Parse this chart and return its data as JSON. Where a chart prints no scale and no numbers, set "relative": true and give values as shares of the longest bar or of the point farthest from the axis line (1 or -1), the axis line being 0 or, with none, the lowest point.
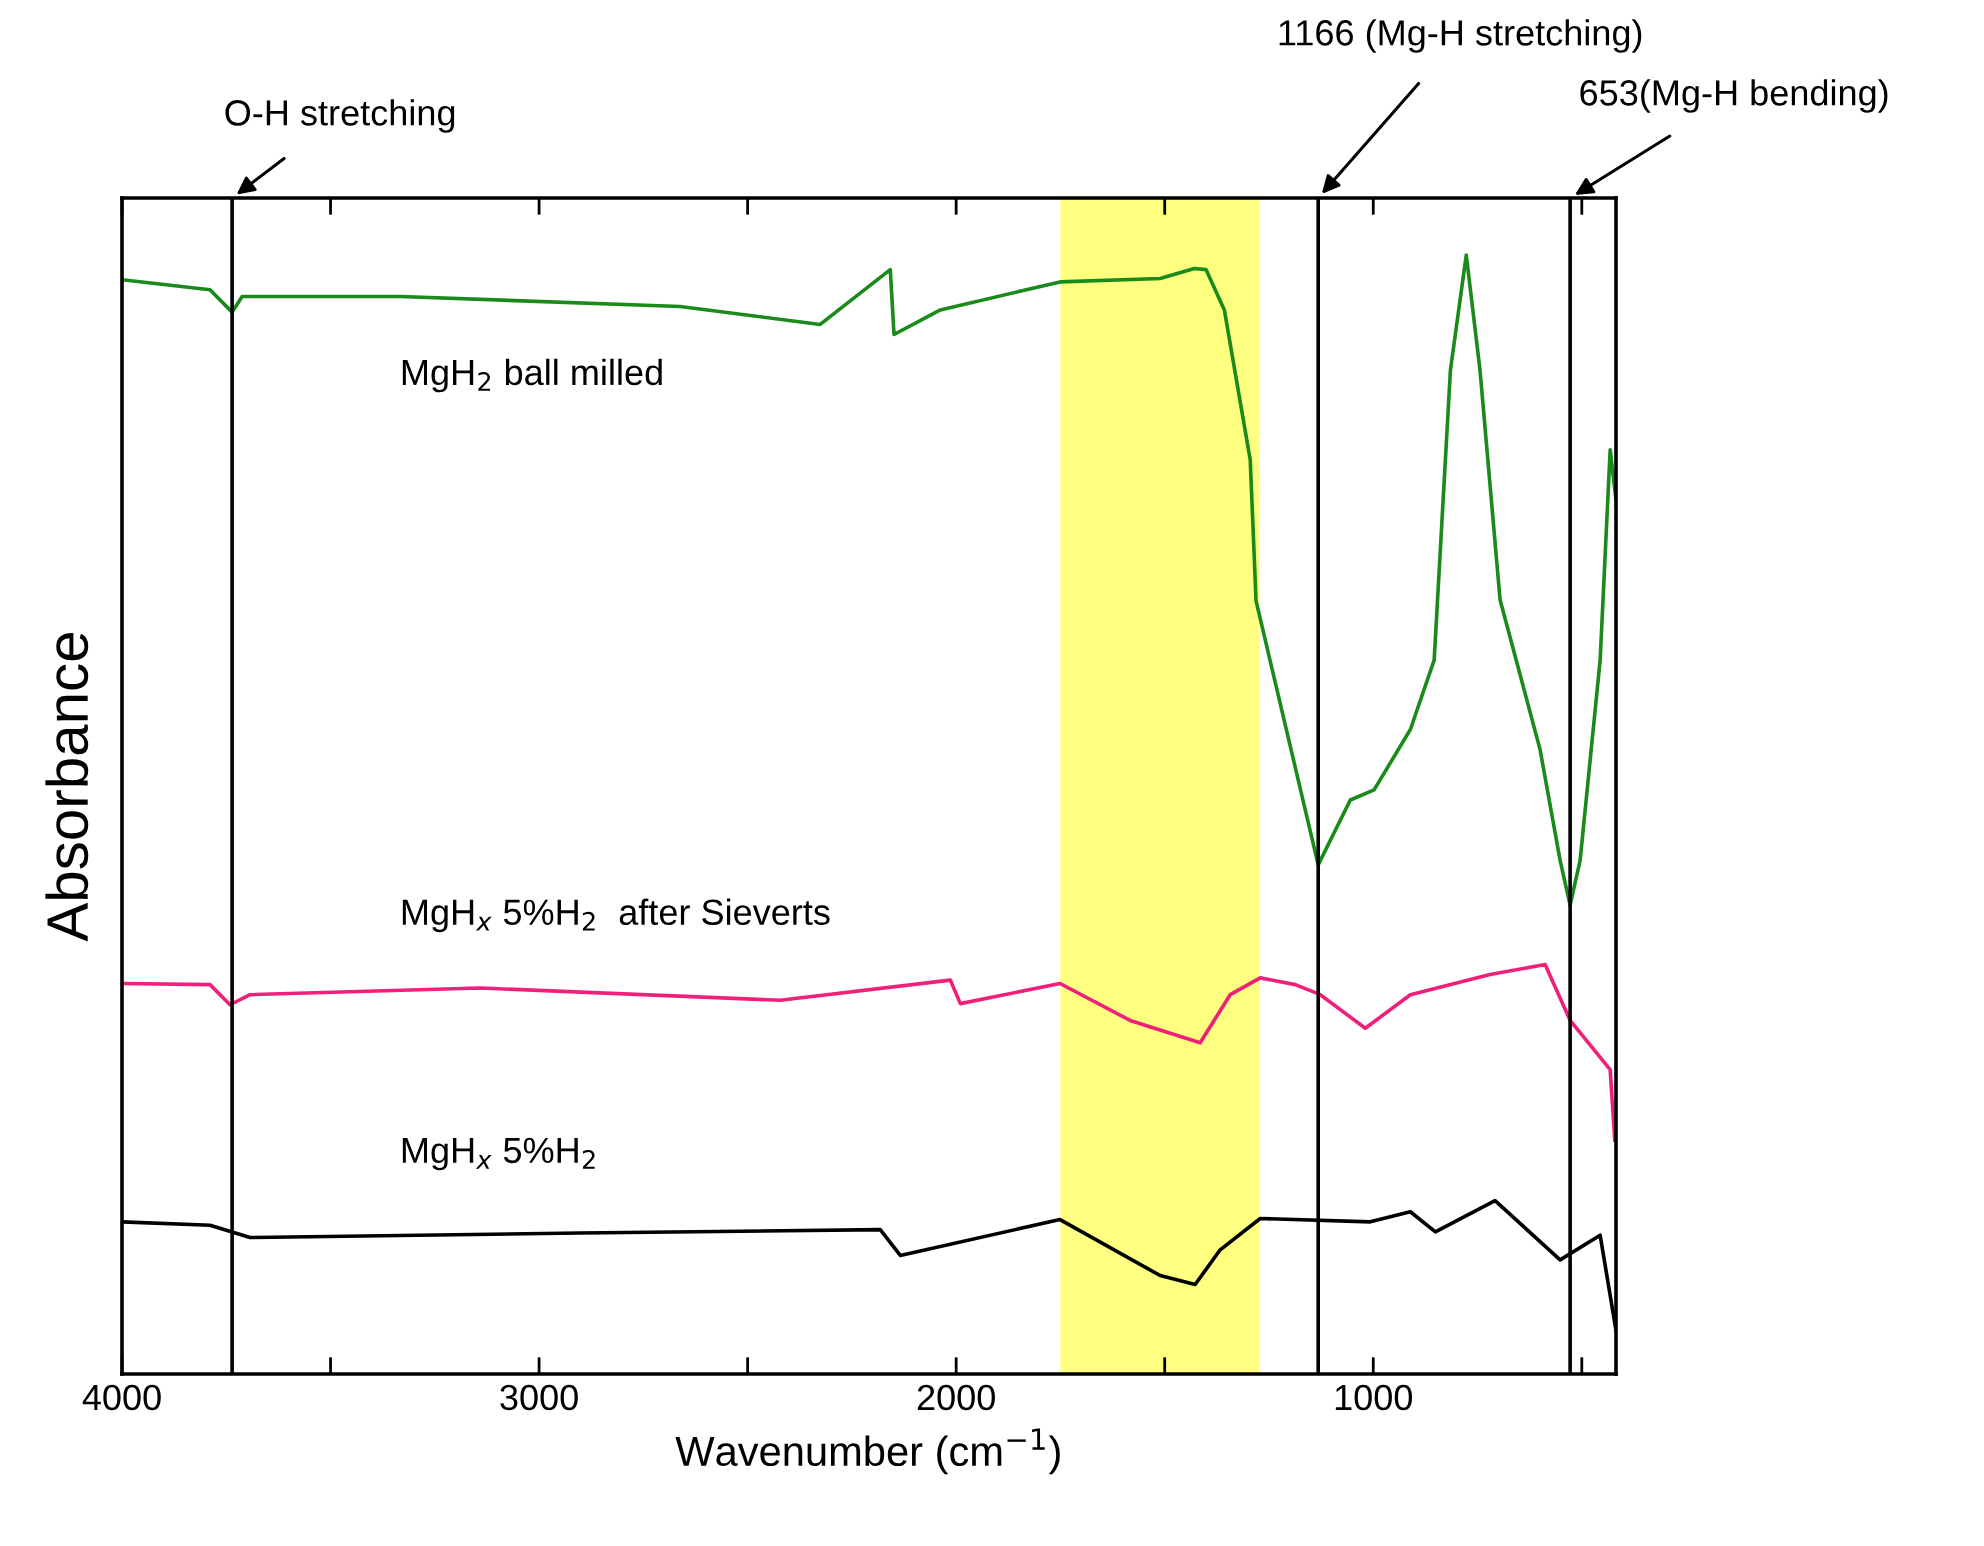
{
  "chart_data": {
    "type": "line",
    "xlabel": "Wavenumber (cm$^{−1}$)",
    "ylabel": "Absorbance",
    "relative": true,
    "tick_labels": "x",
    "grid": false,
    "xlim": [
      4000,
      418
    ],
    "xticks": [
      4000,
      {
        "value": 3500,
        "label": null
      },
      3000,
      {
        "value": 2500,
        "label": null
      },
      2000,
      {
        "value": 1500,
        "label": null
      },
      1000,
      {
        "value": 500,
        "label": null
      }
    ],
    "ref_lines": [
      {
        "axis": "x",
        "value": 3736,
        "label": "O-H stretching",
        "color": "#000000"
      },
      {
        "axis": "x",
        "value": 1132,
        "label": "1166 (Mg-H stretching)",
        "color": "#000000"
      },
      {
        "axis": "x",
        "value": 528,
        "label": "653(Mg-H bending)",
        "color": "#000000"
      }
    ],
    "bands": [
      {
        "axis": "x",
        "from": 1750,
        "to": 1273,
        "color": "#ffff80"
      }
    ],
    "series": [
      {
        "name": "MgH$_{2}$ ball milled",
        "color": "#1a8a1a",
        "x": [
          4000,
          3789,
          3736,
          3712,
          3333,
          2662,
          2326,
          2158,
          2149,
          2038,
          1751,
          1511,
          1429,
          1401,
          1357,
          1295,
          1281,
          1132,
          1055,
          998,
          911,
          854,
          815,
          777,
          744,
          696,
          600,
          552,
          528,
          504,
          456,
          432,
          418
        ],
        "values": [
          0.978,
          0.969,
          0.949,
          0.963,
          0.963,
          0.954,
          0.938,
          0.987,
          0.929,
          0.951,
          0.976,
          0.979,
          0.988,
          0.987,
          0.951,
          0.817,
          0.691,
          0.455,
          0.513,
          0.522,
          0.576,
          0.638,
          0.897,
          1.0,
          0.897,
          0.692,
          0.558,
          0.459,
          0.419,
          0.459,
          0.638,
          0.826,
          0.781
        ]
      },
      {
        "name": "MgH$_{x}$ 5%H$_{2}$  after Sieverts",
        "color": "#f0207a",
        "x": [
          4000,
          3789,
          3741,
          3693,
          3142,
          2422,
          2014,
          1990,
          1751,
          1583,
          1415,
          1343,
          1271,
          1187,
          1127,
          1019,
          911,
          720,
          588,
          528,
          432,
          421
        ],
        "values": [
          0.349,
          0.348,
          0.33,
          0.339,
          0.345,
          0.334,
          0.352,
          0.331,
          0.349,
          0.316,
          0.296,
          0.339,
          0.354,
          0.348,
          0.339,
          0.309,
          0.339,
          0.357,
          0.366,
          0.316,
          0.272,
          0.209
        ]
      },
      {
        "name": "MgH$_{x}$ 5%H$_{2}$",
        "color": "#000000",
        "x": [
          4000,
          3789,
          3693,
          2902,
          2182,
          2134,
          1751,
          1511,
          1427,
          1367,
          1271,
          1007,
          911,
          851,
          708,
          552,
          456,
          418
        ],
        "values": [
          0.136,
          0.133,
          0.122,
          0.126,
          0.129,
          0.106,
          0.138,
          0.088,
          0.08,
          0.111,
          0.139,
          0.136,
          0.145,
          0.127,
          0.155,
          0.102,
          0.124,
          0.039
        ]
      }
    ]
  }
}
